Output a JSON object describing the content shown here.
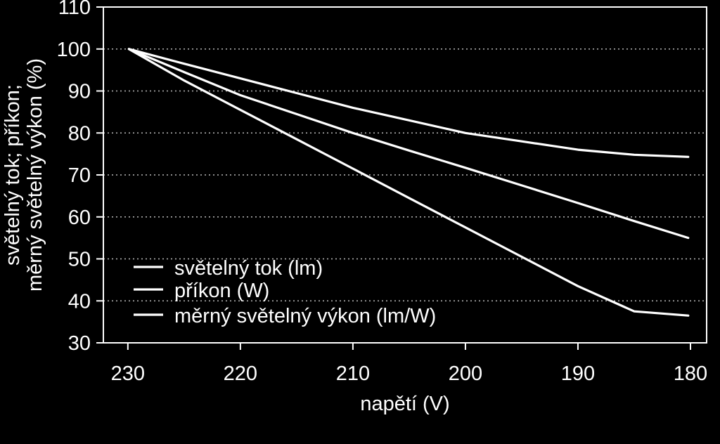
{
  "chart_data": {
    "type": "line",
    "xlabel": "napětí (V)",
    "ylabel_line1": "světelný tok; příkon;",
    "ylabel_line2": "měrný světelný výkon (%)",
    "x_ticks": [
      230,
      220,
      210,
      200,
      190,
      180
    ],
    "y_ticks": [
      30,
      40,
      50,
      60,
      70,
      80,
      90,
      100,
      110
    ],
    "xlim": [
      230.5,
      179.5
    ],
    "ylim": [
      30,
      110
    ],
    "x_reversed": true,
    "grid": "horizontal dotted",
    "legend_position": "bottom-left",
    "colors": {
      "background": "#000000",
      "foreground": "#ffffff",
      "grid": "#bbbbbb"
    },
    "series": [
      {
        "name": "světelný tok (lm)",
        "x": [
          229.9,
          225,
          220,
          215,
          210,
          205,
          200,
          195,
          190,
          185,
          180.2
        ],
        "values": [
          100,
          92.5,
          85.5,
          78.5,
          71.5,
          64.5,
          57.5,
          50.5,
          43.5,
          37.5,
          36.5
        ]
      },
      {
        "name": "příkon (W)",
        "x": [
          229.9,
          225,
          220,
          215,
          210,
          205,
          200,
          195,
          190,
          185,
          180.2
        ],
        "values": [
          100,
          96.5,
          93,
          89.5,
          86,
          83,
          80,
          78,
          76,
          74.8,
          74.3
        ]
      },
      {
        "name": "měrný světelný výkon (lm/W)",
        "x": [
          229.9,
          225,
          220,
          215,
          210,
          205,
          200,
          195,
          190,
          185,
          180.2
        ],
        "values": [
          100,
          94.5,
          89,
          84.5,
          80,
          75.8,
          71.7,
          67.5,
          63.3,
          59,
          55
        ]
      }
    ]
  }
}
